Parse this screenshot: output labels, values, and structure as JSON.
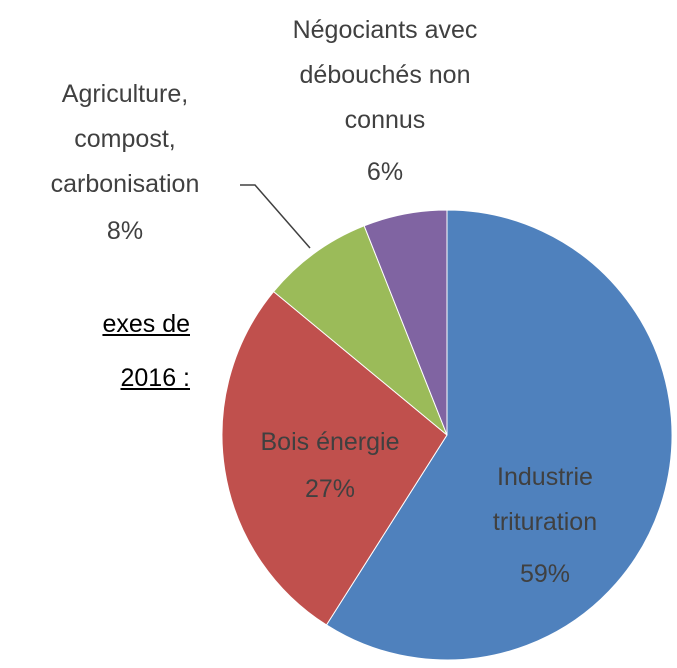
{
  "chart_data": {
    "type": "pie",
    "categories": [
      "Industrie\ntrituration",
      "Bois énergie",
      "Agriculture,\ncompost,\ncarbonisation",
      "Négociants avec\ndébouchés non\nconnus"
    ],
    "values": [
      59,
      27,
      8,
      6
    ],
    "value_labels": [
      "59%",
      "27%",
      "8%",
      "6%"
    ],
    "colors": [
      "#4f81bd",
      "#c0504d",
      "#9bbb59",
      "#8064a2"
    ]
  },
  "side_text": [
    "exes de",
    "2016 :"
  ]
}
